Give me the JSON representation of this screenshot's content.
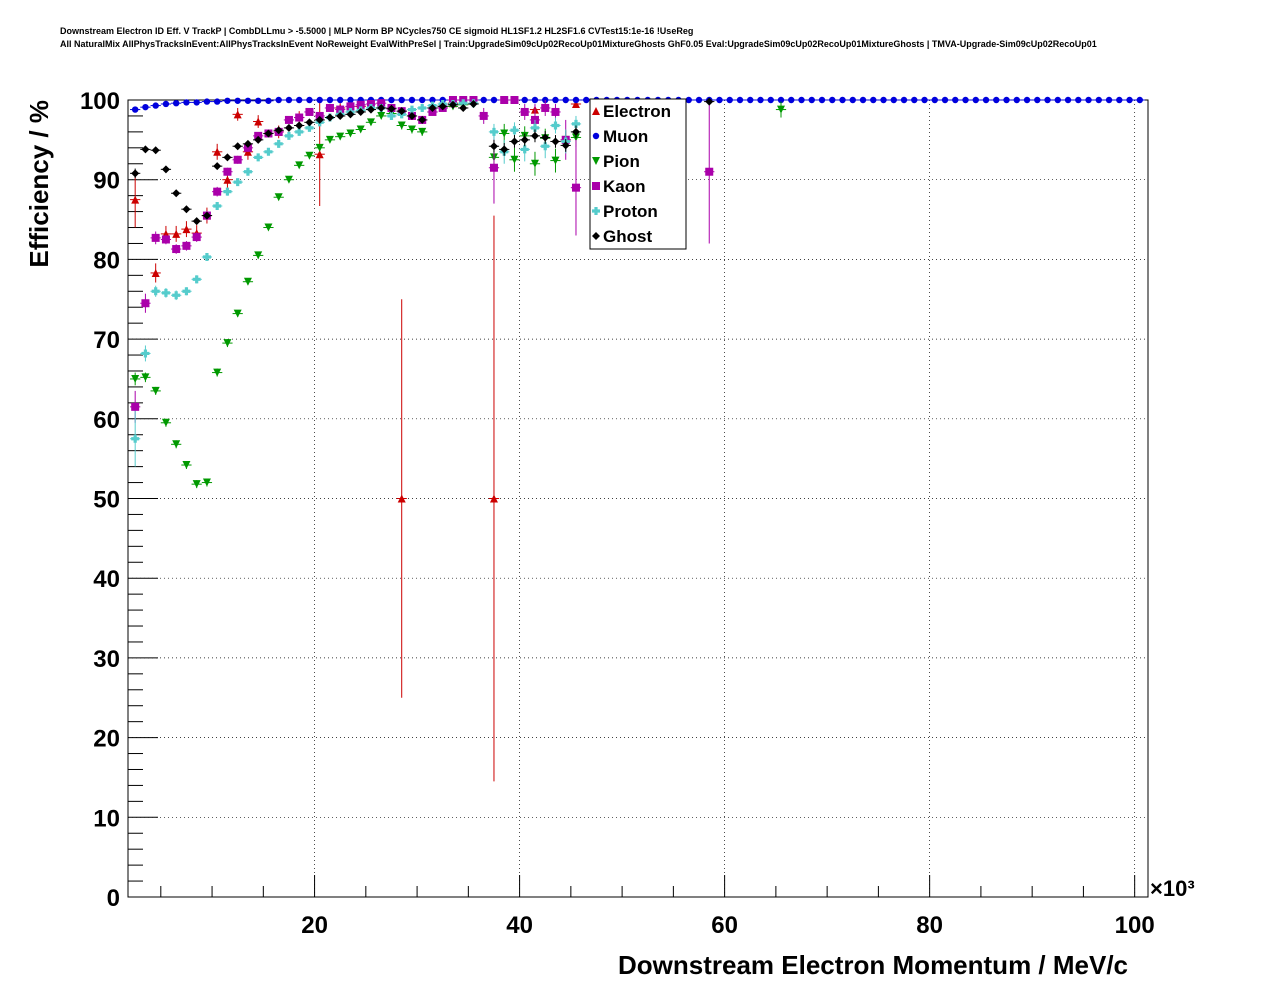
{
  "title_lines": [
    "Downstream Electron ID Eff. V TrackP | CombDLLmu > -5.5000 | MLP Norm BP NCycles750 CE sigmoid HL1SF1.2 HL2SF1.6 CVTest15:1e-16 !UseReg",
    "All NaturalMix AllPhysTracksInEvent:AllPhysTracksInEvent NoReweight EvalWithPreSel | Train:UpgradeSim09cUp02RecoUp01MixtureGhosts GhF0.05 Eval:UpgradeSim09cUp02RecoUp01MixtureGhosts | TMVA-Upgrade-Sim09cUp02RecoUp01"
  ],
  "chart_data": {
    "type": "scatter",
    "xlabel": "Downstream Electron Momentum / MeV/c",
    "ylabel": "Efficiency / %",
    "x_multiplier_label": "×10³",
    "xlim": [
      1.8,
      101.3
    ],
    "ylim": [
      0,
      100
    ],
    "x_ticks": [
      20,
      40,
      60,
      80,
      100
    ],
    "x_tick_labels": [
      "20",
      "40",
      "60",
      "80",
      "100"
    ],
    "y_ticks": [
      0,
      10,
      20,
      30,
      40,
      50,
      60,
      70,
      80,
      90,
      100
    ],
    "y_tick_labels": [
      "0",
      "10",
      "20",
      "30",
      "40",
      "50",
      "60",
      "70",
      "80",
      "90",
      "100"
    ],
    "grid": true,
    "legend_position": "top-right-inside",
    "series": [
      {
        "name": "Electron",
        "color": "#cc0000",
        "marker": "triangle-up",
        "x": [
          2.5,
          4.5,
          5.5,
          6.5,
          7.5,
          8.5,
          9.5,
          10.5,
          11.5,
          12.5,
          13.5,
          14.5,
          16.5,
          18.5,
          20.5,
          22.5,
          24.5,
          28.5,
          33.5,
          37.5,
          41.5,
          45.5
        ],
        "y": [
          87.5,
          78.3,
          83.2,
          83.2,
          83.8,
          83.3,
          85.5,
          93.5,
          90.0,
          98.2,
          93.5,
          97.3,
          96.0,
          97.8,
          93.2,
          99.0,
          99.2,
          50.0,
          99.6,
          50.0,
          98.8,
          99.5
        ],
        "err": [
          3.5,
          1.2,
          1.0,
          1.0,
          1.0,
          1.0,
          1.0,
          1.0,
          1.0,
          0.8,
          1.0,
          0.8,
          0.8,
          0.8,
          6.5,
          0.6,
          0.6,
          25.0,
          0.4,
          35.5,
          0.6,
          0.4
        ]
      },
      {
        "name": "Muon",
        "color": "#0000dd",
        "marker": "circle",
        "x": [
          2.5,
          3.5,
          4.5,
          5.5,
          6.5,
          7.5,
          8.5,
          9.5,
          10.5,
          11.5,
          12.5,
          13.5,
          14.5,
          15.5,
          16.5,
          17.5,
          18.5,
          19.5,
          20.5,
          21.5,
          22.5,
          23.5,
          24.5,
          25.5,
          26.5,
          27.5,
          28.5,
          29.5,
          30.5,
          31.5,
          32.5,
          33.5,
          34.5,
          35.5,
          36.5,
          37.5,
          38.5,
          39.5,
          40.5,
          41.5,
          42.5,
          43.5,
          44.5,
          45.5,
          46.5,
          47.5,
          48.5,
          49.5,
          50.5,
          51.5,
          52.5,
          53.5,
          54.5,
          55.5,
          56.5,
          57.5,
          58.5,
          59.5,
          60.5,
          61.5,
          62.5,
          63.5,
          64.5,
          65.5,
          66.5,
          67.5,
          68.5,
          69.5,
          70.5,
          71.5,
          72.5,
          73.5,
          74.5,
          75.5,
          76.5,
          77.5,
          78.5,
          79.5,
          80.5,
          81.5,
          82.5,
          83.5,
          84.5,
          85.5,
          86.5,
          87.5,
          88.5,
          89.5,
          90.5,
          91.5,
          92.5,
          93.5,
          94.5,
          95.5,
          96.5,
          97.5,
          98.5,
          99.5,
          100.5
        ],
        "y": [
          98.8,
          99.1,
          99.3,
          99.5,
          99.6,
          99.7,
          99.7,
          99.8,
          99.8,
          99.9,
          99.9,
          99.9,
          99.9,
          99.9,
          100,
          100,
          100,
          100,
          100,
          100,
          100,
          100,
          100,
          100,
          100,
          100,
          100,
          100,
          100,
          100,
          100,
          100,
          100,
          100,
          100,
          100,
          100,
          100,
          100,
          100,
          100,
          100,
          100,
          100,
          100,
          100,
          100,
          100,
          100,
          100,
          100,
          100,
          100,
          100,
          100,
          100,
          100,
          100,
          100,
          100,
          100,
          100,
          100,
          100,
          100,
          100,
          100,
          100,
          100,
          100,
          100,
          100,
          100,
          100,
          100,
          100,
          100,
          100,
          100,
          100,
          100,
          100,
          100,
          100,
          100,
          100,
          100,
          100,
          100,
          100,
          100,
          100,
          100,
          100,
          100,
          100,
          100,
          100,
          100
        ],
        "err": []
      },
      {
        "name": "Pion",
        "color": "#009900",
        "marker": "triangle-down",
        "x": [
          2.5,
          3.5,
          4.5,
          5.5,
          6.5,
          7.5,
          8.5,
          9.5,
          10.5,
          11.5,
          12.5,
          13.5,
          14.5,
          15.5,
          16.5,
          17.5,
          18.5,
          19.5,
          20.5,
          21.5,
          22.5,
          23.5,
          24.5,
          25.5,
          26.5,
          27.5,
          28.5,
          29.5,
          30.5,
          31.5,
          32.5,
          33.5,
          34.5,
          35.5,
          37.5,
          38.5,
          39.5,
          40.5,
          41.5,
          42.5,
          43.5,
          44.5,
          45.5,
          65.5
        ],
        "y": [
          65.0,
          65.2,
          63.5,
          59.5,
          56.8,
          54.2,
          51.8,
          52.0,
          65.8,
          69.5,
          73.2,
          77.2,
          80.5,
          84.0,
          87.8,
          90.0,
          91.8,
          93.0,
          94.0,
          95.0,
          95.4,
          95.8,
          96.3,
          97.2,
          98.0,
          98.3,
          96.8,
          96.3,
          96.0,
          98.5,
          99.0,
          99.2,
          99.4,
          99.5,
          92.8,
          95.8,
          92.5,
          95.5,
          92.0,
          95.2,
          92.4,
          95.0,
          95.3,
          98.8
        ],
        "err": [
          0.8,
          0.6,
          0.5,
          0.5,
          0.5,
          0.5,
          0.5,
          0.5,
          0.5,
          0.5,
          0.4,
          0.4,
          0.4,
          0.3,
          0.3,
          0.3,
          0.3,
          0.3,
          0.3,
          0.3,
          0.3,
          0.3,
          0.3,
          0.3,
          0.3,
          0.3,
          0.5,
          0.5,
          0.5,
          0.4,
          0.4,
          0.3,
          0.3,
          0.3,
          1.5,
          1.2,
          1.5,
          1.2,
          1.5,
          1.2,
          1.5,
          1.2,
          1.2,
          1.0
        ]
      },
      {
        "name": "Kaon",
        "color": "#aa00aa",
        "marker": "square",
        "x": [
          2.5,
          3.5,
          4.5,
          5.5,
          6.5,
          7.5,
          8.5,
          9.5,
          10.5,
          11.5,
          12.5,
          13.5,
          14.5,
          15.5,
          16.5,
          17.5,
          18.5,
          19.5,
          20.5,
          21.5,
          22.5,
          23.5,
          24.5,
          25.5,
          26.5,
          27.5,
          28.5,
          29.5,
          30.5,
          31.5,
          32.5,
          33.5,
          34.5,
          35.5,
          36.5,
          37.5,
          38.5,
          39.5,
          40.5,
          41.5,
          42.5,
          43.5,
          44.5,
          45.5,
          58.5
        ],
        "y": [
          61.5,
          74.5,
          82.7,
          82.5,
          81.3,
          81.7,
          82.8,
          85.5,
          88.5,
          91.0,
          92.5,
          94.0,
          95.5,
          95.8,
          96.0,
          97.5,
          97.8,
          98.5,
          98.0,
          99.0,
          98.8,
          99.2,
          99.4,
          99.5,
          99.6,
          99.0,
          98.6,
          98.0,
          97.5,
          98.5,
          99.0,
          100,
          100,
          100,
          98.0,
          91.5,
          100,
          100,
          98.5,
          97.5,
          99.0,
          98.5,
          95.0,
          89.0,
          91.0
        ],
        "err": [
          2.0,
          1.2,
          0.8,
          0.6,
          0.6,
          0.6,
          0.6,
          0.6,
          0.6,
          0.5,
          0.5,
          0.5,
          0.4,
          0.4,
          0.4,
          0.3,
          0.3,
          0.3,
          0.3,
          0.3,
          0.3,
          0.3,
          0.3,
          0.3,
          0.3,
          0.3,
          0.5,
          0.5,
          0.5,
          0.4,
          0.4,
          0.0,
          0.0,
          0.0,
          1.0,
          4.5,
          0.0,
          0.0,
          1.0,
          2.0,
          1.0,
          1.0,
          2.5,
          6.0,
          9.0
        ]
      },
      {
        "name": "Proton",
        "color": "#55cccc",
        "marker": "cross",
        "x": [
          2.5,
          3.5,
          4.5,
          5.5,
          6.5,
          7.5,
          8.5,
          9.5,
          10.5,
          11.5,
          12.5,
          13.5,
          14.5,
          15.5,
          16.5,
          17.5,
          18.5,
          19.5,
          20.5,
          21.5,
          22.5,
          23.5,
          24.5,
          25.5,
          26.5,
          27.5,
          28.5,
          29.5,
          30.5,
          31.5,
          32.5,
          33.5,
          34.5,
          35.5,
          37.5,
          38.5,
          39.5,
          40.5,
          41.5,
          42.5,
          43.5,
          44.5,
          45.5
        ],
        "y": [
          57.5,
          68.2,
          76.0,
          75.8,
          75.5,
          76.0,
          77.5,
          80.3,
          86.7,
          88.5,
          89.7,
          91.0,
          92.8,
          93.5,
          94.5,
          95.5,
          96.0,
          96.5,
          97.2,
          97.8,
          98.2,
          98.5,
          98.7,
          99.0,
          99.0,
          98.0,
          98.2,
          98.8,
          99.0,
          99.3,
          99.5,
          99.5,
          99.6,
          99.6,
          96.0,
          93.5,
          96.2,
          93.8,
          96.5,
          94.2,
          96.8,
          94.8,
          97.0
        ],
        "err": [
          3.5,
          1.0,
          0.7,
          0.6,
          0.6,
          0.5,
          0.5,
          0.5,
          0.5,
          0.5,
          0.4,
          0.4,
          0.4,
          0.3,
          0.3,
          0.3,
          0.3,
          0.3,
          0.3,
          0.3,
          0.3,
          0.3,
          0.3,
          0.3,
          0.3,
          0.4,
          0.4,
          0.3,
          0.3,
          0.3,
          0.3,
          0.3,
          0.3,
          0.3,
          1.0,
          1.5,
          1.0,
          1.5,
          1.0,
          1.5,
          1.0,
          1.5,
          1.0
        ]
      },
      {
        "name": "Ghost",
        "color": "#000000",
        "marker": "diamond",
        "x": [
          2.5,
          3.5,
          4.5,
          5.5,
          6.5,
          7.5,
          8.5,
          9.5,
          10.5,
          11.5,
          12.5,
          13.5,
          14.5,
          15.5,
          16.5,
          17.5,
          18.5,
          19.5,
          20.5,
          21.5,
          22.5,
          23.5,
          24.5,
          25.5,
          26.5,
          27.5,
          28.5,
          29.5,
          30.5,
          31.5,
          32.5,
          33.5,
          34.5,
          35.5,
          37.5,
          38.5,
          39.5,
          40.5,
          41.5,
          42.5,
          43.5,
          44.5,
          45.5,
          58.5
        ],
        "y": [
          90.8,
          93.8,
          93.7,
          91.3,
          88.3,
          86.3,
          84.8,
          85.5,
          91.7,
          92.8,
          94.2,
          94.5,
          95.0,
          95.8,
          96.2,
          96.5,
          96.8,
          97.2,
          97.5,
          97.8,
          98.0,
          98.2,
          98.5,
          98.8,
          99.0,
          98.9,
          98.6,
          98.0,
          97.5,
          99.0,
          99.2,
          99.4,
          99.0,
          99.5,
          94.2,
          93.8,
          94.8,
          95.0,
          95.5,
          95.3,
          94.8,
          94.3,
          96.0,
          99.8
        ],
        "err": [
          0.6,
          0.4,
          0.4,
          0.4,
          0.4,
          0.4,
          0.4,
          0.4,
          0.3,
          0.3,
          0.3,
          0.3,
          0.3,
          0.3,
          0.3,
          0.3,
          0.3,
          0.3,
          0.3,
          0.3,
          0.3,
          0.3,
          0.3,
          0.3,
          0.3,
          0.3,
          0.3,
          0.3,
          0.3,
          0.3,
          0.3,
          0.3,
          0.3,
          0.3,
          0.8,
          0.8,
          0.8,
          0.8,
          0.8,
          0.8,
          0.8,
          0.8,
          0.8,
          0.2
        ]
      }
    ]
  }
}
